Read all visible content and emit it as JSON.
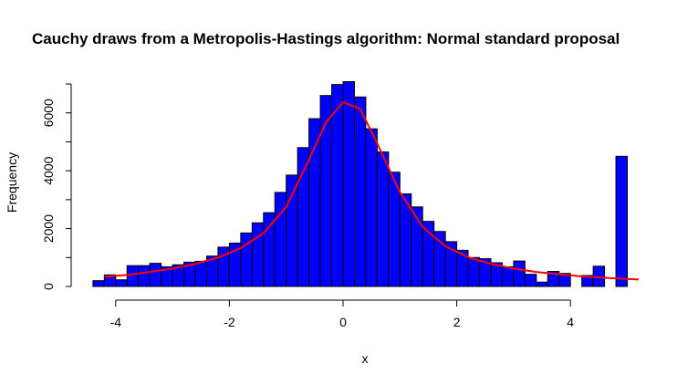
{
  "chart_data": {
    "type": "bar",
    "title": "Cauchy draws from a Metropolis-Hastings algorithm: Normal standard proposal",
    "xlabel": "x",
    "ylabel": "Frequency",
    "xlim": [
      -4.4,
      5.2
    ],
    "ylim": [
      0,
      7000
    ],
    "x_ticks": [
      -4,
      -2,
      0,
      2,
      4
    ],
    "y_ticks": [
      0,
      2000,
      4000,
      6000
    ],
    "bin_width": 0.2,
    "bin_start": -4.4,
    "bar_color": "#0000ff",
    "bar_border_color": "#000000",
    "values": [
      200,
      400,
      230,
      720,
      720,
      800,
      680,
      750,
      840,
      870,
      1050,
      1360,
      1500,
      1850,
      2200,
      2550,
      3250,
      3850,
      4800,
      5800,
      6600,
      6980,
      7080,
      6550,
      5450,
      4650,
      3950,
      3200,
      2750,
      2250,
      1900,
      1550,
      1250,
      1000,
      960,
      820,
      680,
      880,
      420,
      150,
      520,
      450,
      0,
      380,
      700,
      0,
      4500
    ],
    "density_curve": {
      "color": "#ff0000",
      "x": [
        -4.2,
        -3.8,
        -3.4,
        -3.0,
        -2.6,
        -2.2,
        -1.8,
        -1.4,
        -1.0,
        -0.6,
        -0.3,
        0.0,
        0.3,
        0.6,
        1.0,
        1.4,
        1.8,
        2.2,
        2.6,
        3.0,
        3.4,
        3.8,
        4.2,
        4.6,
        5.0,
        5.2
      ],
      "y": [
        330,
        400,
        500,
        620,
        780,
        1000,
        1330,
        1840,
        2750,
        4380,
        5670,
        6370,
        6140,
        4950,
        3260,
        2060,
        1390,
        1010,
        780,
        620,
        500,
        420,
        350,
        300,
        260,
        240
      ]
    }
  }
}
